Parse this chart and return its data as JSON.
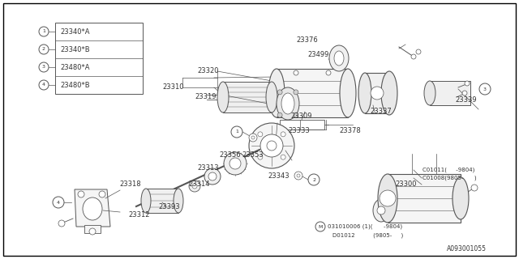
{
  "bg_color": "#ffffff",
  "line_color": "#555555",
  "text_color": "#333333",
  "footer_ref": "A093001055",
  "legend_items": [
    {
      "num": "1",
      "code": "23340*A"
    },
    {
      "num": "2",
      "code": "23340*B"
    },
    {
      "num": "3",
      "code": "23480*A"
    },
    {
      "num": "4",
      "code": "23480*B"
    }
  ],
  "figsize": [
    6.4,
    3.2
  ],
  "dpi": 100
}
